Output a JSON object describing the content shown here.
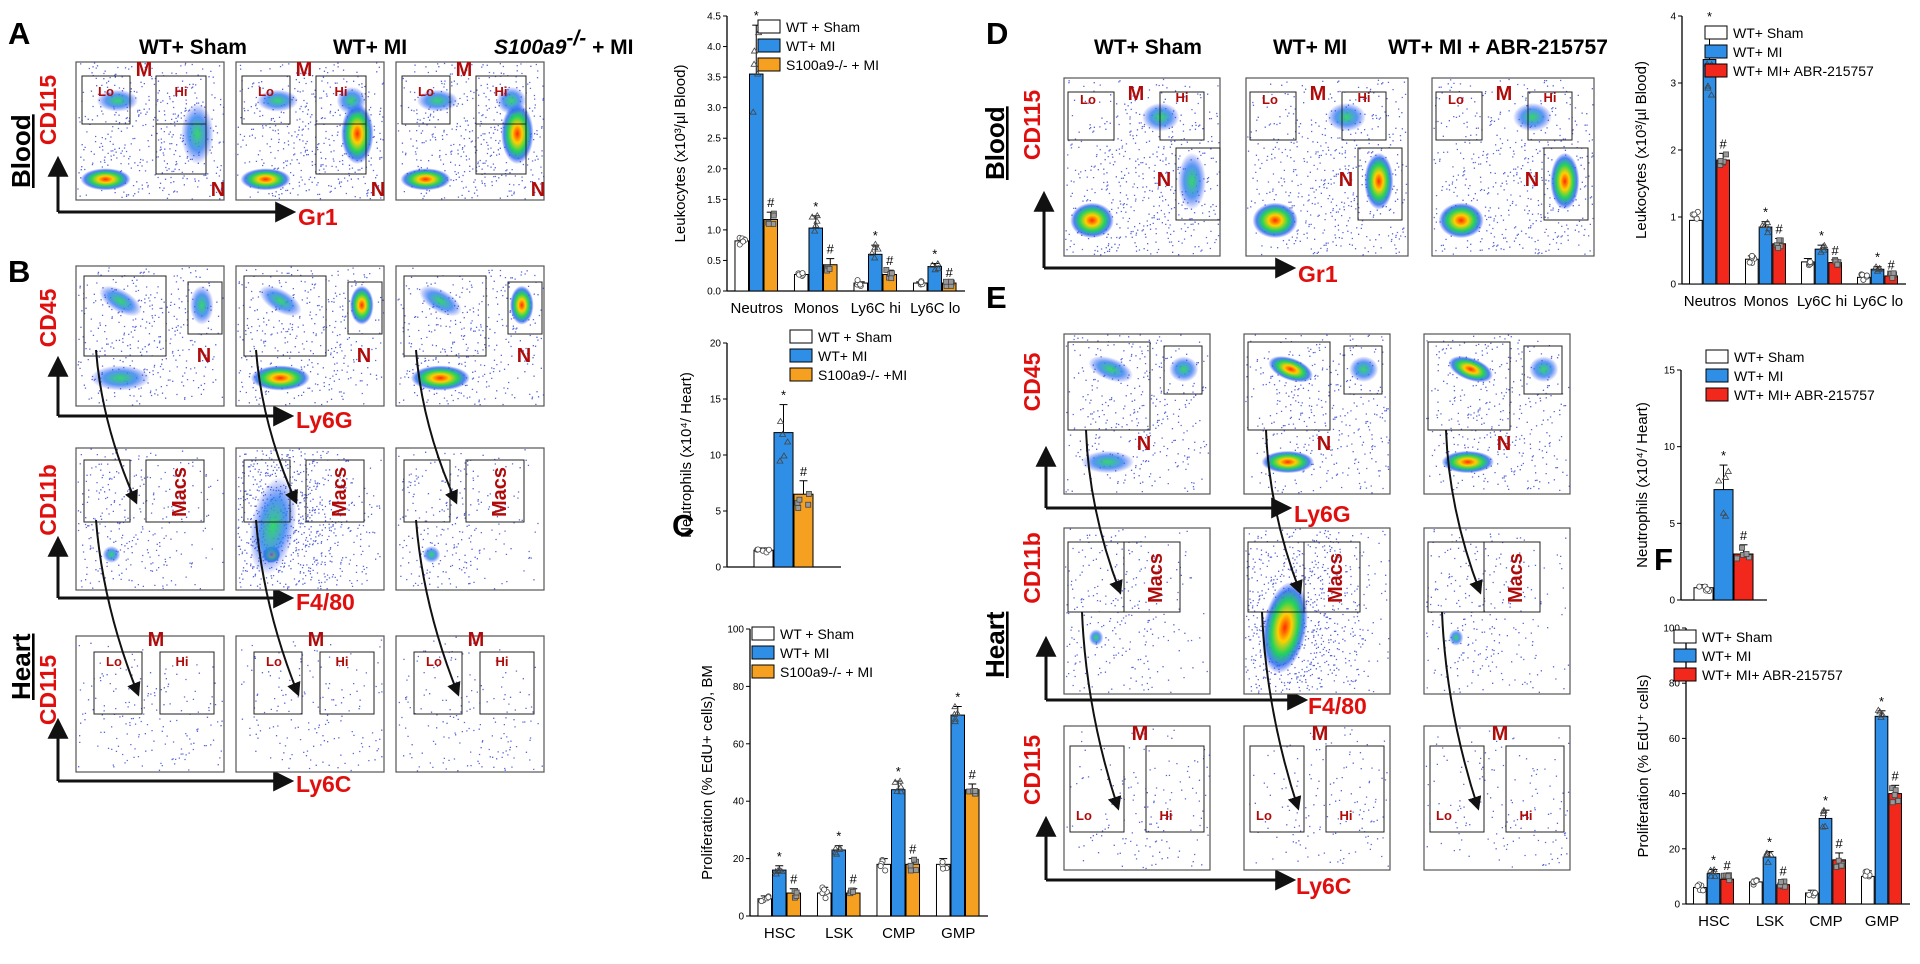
{
  "figure": {
    "panel_letters": [
      "A",
      "B",
      "C",
      "D",
      "E",
      "F"
    ],
    "left_columns": [
      "WT+ Sham",
      "WT+ MI",
      "S100a9",
      "-/-",
      " + MI"
    ],
    "right_columns": [
      "WT+ Sham",
      "WT+ MI",
      "WT+ MI + ABR-215757"
    ],
    "tissues": {
      "blood": "Blood",
      "heart": "Heart"
    },
    "flow_axes": {
      "cd115": "CD115",
      "gr1": "Gr1",
      "cd45": "CD45",
      "ly6g": "Ly6G",
      "cd11b": "CD11b",
      "f480": "F4/80",
      "ly6c": "Ly6C"
    },
    "gate_labels": {
      "lo": "Lo",
      "hi": "Hi",
      "m": "M",
      "n": "N",
      "macs": "Macs"
    }
  },
  "chart_data": [
    {
      "panel": "A",
      "type": "bar",
      "ylabel": "Leukocytes (x10³/µl Blood)",
      "ylim": [
        0,
        4.5
      ],
      "yticks": [
        "0.0",
        "0.5",
        "1.0",
        "1.5",
        "2.0",
        "2.5",
        "3.0",
        "3.5",
        "4.0",
        "4.5"
      ],
      "categories": [
        "Neutros",
        "Monos",
        "Ly6C hi",
        "Ly6C lo"
      ],
      "series": [
        {
          "name": "WT + Sham",
          "color": "#ffffff",
          "values": [
            0.82,
            0.27,
            0.13,
            0.13
          ],
          "errors": [
            0.06,
            0.04,
            0.02,
            0.02
          ],
          "marker": ""
        },
        {
          "name": "WT+ MI",
          "color": "#2f8fe6",
          "values": [
            3.55,
            1.03,
            0.6,
            0.4
          ],
          "errors": [
            0.8,
            0.2,
            0.15,
            0.05
          ],
          "marker": "*"
        },
        {
          "name": "S100a9-/- + MI",
          "color": "#f5a020",
          "values": [
            1.17,
            0.43,
            0.27,
            0.13
          ],
          "errors": [
            0.12,
            0.1,
            0.07,
            0.02
          ],
          "marker": "#"
        }
      ]
    },
    {
      "panel": "B",
      "type": "bar",
      "ylabel": "Neutrophils (x10⁴/ Heart)",
      "ylim": [
        0,
        20
      ],
      "yticks": [
        "0",
        "5",
        "10",
        "15",
        "20"
      ],
      "categories": [
        ""
      ],
      "series": [
        {
          "name": "WT + Sham",
          "color": "#ffffff",
          "values": [
            1.5
          ],
          "errors": [
            0.2
          ],
          "marker": ""
        },
        {
          "name": "WT+ MI",
          "color": "#2f8fe6",
          "values": [
            12.0
          ],
          "errors": [
            2.5
          ],
          "marker": "*"
        },
        {
          "name": "S100a9-/- +MI",
          "color": "#f5a020",
          "values": [
            6.5
          ],
          "errors": [
            1.2
          ],
          "marker": "#"
        }
      ]
    },
    {
      "panel": "C",
      "type": "bar",
      "ylabel": "Proliferation (% EdU+ cells), BM",
      "ylim": [
        0,
        100
      ],
      "yticks": [
        "0",
        "20",
        "40",
        "60",
        "80",
        "100"
      ],
      "categories": [
        "HSC",
        "LSK",
        "CMP",
        "GMP"
      ],
      "series": [
        {
          "name": "WT + Sham",
          "color": "#ffffff",
          "values": [
            6,
            8,
            18,
            18
          ],
          "errors": [
            1,
            2,
            2,
            2
          ],
          "marker": ""
        },
        {
          "name": "WT+ MI",
          "color": "#2f8fe6",
          "values": [
            16,
            23,
            44,
            70
          ],
          "errors": [
            1.5,
            1.5,
            3,
            3
          ],
          "marker": "*"
        },
        {
          "name": "S100a9-/- + MI",
          "color": "#f5a020",
          "values": [
            8,
            8,
            18,
            44
          ],
          "errors": [
            1.5,
            1.5,
            2,
            2
          ],
          "marker": "#"
        }
      ]
    },
    {
      "panel": "D",
      "type": "bar",
      "ylabel": "Leukocytes (x10³/µl Blood)",
      "ylim": [
        0,
        4
      ],
      "yticks": [
        "0",
        "1",
        "2",
        "3",
        "4"
      ],
      "categories": [
        "Neutros",
        "Monos",
        "Ly6C hi",
        "Ly6C lo"
      ],
      "series": [
        {
          "name": "WT+ Sham",
          "color": "#ffffff",
          "values": [
            0.95,
            0.37,
            0.33,
            0.1
          ],
          "errors": [
            0.12,
            0.05,
            0.05,
            0.02
          ],
          "marker": ""
        },
        {
          "name": "WT+ MI",
          "color": "#2f8fe6",
          "values": [
            3.35,
            0.85,
            0.52,
            0.22
          ],
          "errors": [
            0.5,
            0.08,
            0.06,
            0.04
          ],
          "marker": "*"
        },
        {
          "name": "WT+ MI+ ABR-215757",
          "color": "#f2281d",
          "values": [
            1.85,
            0.6,
            0.32,
            0.12
          ],
          "errors": [
            0.1,
            0.08,
            0.04,
            0.02
          ],
          "marker": "#"
        }
      ]
    },
    {
      "panel": "E",
      "type": "bar",
      "ylabel": "Neutrophils (x10⁴/ Heart)",
      "ylim": [
        0,
        15
      ],
      "yticks": [
        "0",
        "5",
        "10",
        "15"
      ],
      "categories": [
        ""
      ],
      "series": [
        {
          "name": "WT+ Sham",
          "color": "#ffffff",
          "values": [
            0.8
          ],
          "errors": [
            0.2
          ],
          "marker": ""
        },
        {
          "name": "WT+ MI",
          "color": "#2f8fe6",
          "values": [
            7.2
          ],
          "errors": [
            1.6
          ],
          "marker": "*"
        },
        {
          "name": "WT+ MI+ ABR-215757",
          "color": "#f2281d",
          "values": [
            3.0
          ],
          "errors": [
            0.6
          ],
          "marker": "#"
        }
      ]
    },
    {
      "panel": "F",
      "type": "bar",
      "ylabel": "Proliferation (% EdU⁺ cells)",
      "ylim": [
        0,
        100
      ],
      "yticks": [
        "0",
        "20",
        "40",
        "60",
        "80",
        "100"
      ],
      "categories": [
        "HSC",
        "LSK",
        "CMP",
        "GMP"
      ],
      "series": [
        {
          "name": "WT+ Sham",
          "color": "#ffffff",
          "values": [
            6,
            8,
            4,
            10
          ],
          "errors": [
            1,
            1,
            1,
            2
          ],
          "marker": ""
        },
        {
          "name": "WT+ MI",
          "color": "#2f8fe6",
          "values": [
            11,
            17,
            31,
            68
          ],
          "errors": [
            1.5,
            2,
            3,
            2
          ],
          "marker": "*"
        },
        {
          "name": "WT+ MI+ ABR-215757",
          "color": "#f2281d",
          "values": [
            9,
            7,
            16,
            40
          ],
          "errors": [
            1.5,
            1.5,
            2.5,
            3
          ],
          "marker": "#"
        }
      ]
    }
  ]
}
